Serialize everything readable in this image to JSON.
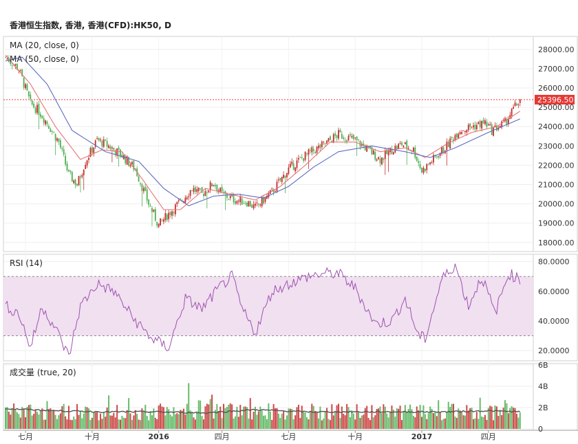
{
  "header": {
    "title": "香港恒生指数, 香港, 香港(CFD):HK50, D"
  },
  "colors": {
    "up": "#c62828",
    "down": "#4caf50",
    "ma20": "#e57373",
    "ma50": "#5c6bc0",
    "rsi": "#a050b0",
    "rsi_band": "#f0e0f0",
    "last_price_bg": "#e53935",
    "vol_ma": "#555555"
  },
  "icons": [],
  "chart_data": [
    {
      "type": "line",
      "name": "price",
      "legend": [
        "MA (20, close, 0)",
        "MA (50, close, 0)"
      ],
      "last_price_label": "25396.50",
      "ylim": [
        17600,
        28600
      ],
      "yticks": [
        "28000.00",
        "27000.00",
        "26000.00",
        "25000.00",
        "24000.00",
        "23000.00",
        "22000.00",
        "21000.00",
        "20000.00",
        "19000.00",
        "18000.00"
      ],
      "ytick_values": [
        28000,
        27000,
        26000,
        25000,
        24000,
        23000,
        22000,
        21000,
        20000,
        19000,
        18000
      ],
      "last_price": 25396.5,
      "close_keypoints": [
        [
          0,
          27600
        ],
        [
          8,
          27000
        ],
        [
          15,
          25200
        ],
        [
          20,
          24800
        ],
        [
          25,
          24200
        ],
        [
          32,
          23200
        ],
        [
          38,
          21500
        ],
        [
          43,
          21000
        ],
        [
          48,
          22200
        ],
        [
          55,
          23300
        ],
        [
          62,
          23000
        ],
        [
          70,
          22500
        ],
        [
          78,
          21800
        ],
        [
          86,
          20000
        ],
        [
          92,
          18900
        ],
        [
          98,
          19500
        ],
        [
          105,
          20100
        ],
        [
          112,
          20800
        ],
        [
          118,
          20500
        ],
        [
          125,
          21100
        ],
        [
          130,
          20500
        ],
        [
          138,
          20200
        ],
        [
          145,
          20100
        ],
        [
          150,
          19800
        ],
        [
          160,
          20600
        ],
        [
          170,
          21800
        ],
        [
          180,
          22500
        ],
        [
          190,
          23000
        ],
        [
          200,
          23600
        ],
        [
          210,
          23300
        ],
        [
          218,
          22800
        ],
        [
          225,
          22300
        ],
        [
          232,
          22800
        ],
        [
          238,
          23100
        ],
        [
          245,
          22800
        ],
        [
          250,
          21700
        ],
        [
          258,
          22400
        ],
        [
          265,
          23000
        ],
        [
          272,
          23800
        ],
        [
          280,
          24000
        ],
        [
          288,
          24200
        ],
        [
          292,
          23800
        ],
        [
          300,
          24200
        ],
        [
          305,
          24900
        ],
        [
          309,
          25400
        ]
      ],
      "ma20_keypoints": [
        [
          0,
          27700
        ],
        [
          15,
          26200
        ],
        [
          30,
          24000
        ],
        [
          45,
          22300
        ],
        [
          58,
          22800
        ],
        [
          70,
          22700
        ],
        [
          82,
          21300
        ],
        [
          95,
          19700
        ],
        [
          105,
          19700
        ],
        [
          120,
          20800
        ],
        [
          135,
          20500
        ],
        [
          150,
          20200
        ],
        [
          165,
          20900
        ],
        [
          180,
          22000
        ],
        [
          195,
          23200
        ],
        [
          210,
          23200
        ],
        [
          225,
          22700
        ],
        [
          240,
          22900
        ],
        [
          252,
          22400
        ],
        [
          265,
          23100
        ],
        [
          280,
          23700
        ],
        [
          295,
          24000
        ],
        [
          309,
          24800
        ]
      ],
      "ma50_keypoints": [
        [
          0,
          27400
        ],
        [
          10,
          27600
        ],
        [
          25,
          26200
        ],
        [
          40,
          23800
        ],
        [
          60,
          22700
        ],
        [
          80,
          22200
        ],
        [
          95,
          20800
        ],
        [
          110,
          19900
        ],
        [
          125,
          20400
        ],
        [
          140,
          20500
        ],
        [
          155,
          20300
        ],
        [
          170,
          20900
        ],
        [
          185,
          21900
        ],
        [
          200,
          22700
        ],
        [
          220,
          23000
        ],
        [
          240,
          22700
        ],
        [
          255,
          22400
        ],
        [
          270,
          22900
        ],
        [
          290,
          23700
        ],
        [
          309,
          24400
        ]
      ]
    },
    {
      "type": "line",
      "name": "rsi",
      "legend": [
        "RSI (14)"
      ],
      "ylim": [
        14,
        84
      ],
      "yticks": [
        "80.0000",
        "60.0000",
        "40.0000",
        "20.0000"
      ],
      "ytick_values": [
        80,
        60,
        40,
        20
      ],
      "band": [
        30,
        70
      ],
      "keypoints": [
        [
          0,
          50
        ],
        [
          8,
          45
        ],
        [
          15,
          22
        ],
        [
          22,
          50
        ],
        [
          30,
          35
        ],
        [
          38,
          16
        ],
        [
          45,
          50
        ],
        [
          55,
          65
        ],
        [
          65,
          60
        ],
        [
          78,
          40
        ],
        [
          88,
          28
        ],
        [
          98,
          22
        ],
        [
          108,
          55
        ],
        [
          118,
          48
        ],
        [
          128,
          62
        ],
        [
          136,
          70
        ],
        [
          142,
          48
        ],
        [
          150,
          32
        ],
        [
          160,
          60
        ],
        [
          172,
          66
        ],
        [
          182,
          70
        ],
        [
          192,
          72
        ],
        [
          200,
          72
        ],
        [
          210,
          62
        ],
        [
          222,
          38
        ],
        [
          232,
          40
        ],
        [
          240,
          55
        ],
        [
          248,
          30
        ],
        [
          252,
          28
        ],
        [
          262,
          68
        ],
        [
          270,
          78
        ],
        [
          278,
          50
        ],
        [
          286,
          70
        ],
        [
          294,
          45
        ],
        [
          302,
          72
        ],
        [
          309,
          68
        ]
      ]
    },
    {
      "type": "bar",
      "name": "volume",
      "legend": [
        "成交量 (true, 20)"
      ],
      "ylim": [
        0,
        6
      ],
      "yticks": [
        "6B",
        "4B",
        "2B",
        "0"
      ],
      "ytick_values": [
        6,
        4,
        2,
        0
      ],
      "vol_ma_keypoints": [
        [
          0,
          1.9
        ],
        [
          30,
          1.7
        ],
        [
          60,
          1.6
        ],
        [
          90,
          1.6
        ],
        [
          120,
          1.5
        ],
        [
          150,
          1.8
        ],
        [
          180,
          1.6
        ],
        [
          210,
          1.6
        ],
        [
          240,
          1.6
        ],
        [
          265,
          1.6
        ],
        [
          290,
          1.7
        ],
        [
          309,
          1.6
        ]
      ]
    }
  ],
  "xaxis": {
    "labels": [
      "七月",
      "十月",
      "2016",
      "四月",
      "七月",
      "十月",
      "2017",
      "四月"
    ],
    "label_bars": [
      12,
      52,
      92,
      130,
      170,
      210,
      250,
      290
    ]
  }
}
